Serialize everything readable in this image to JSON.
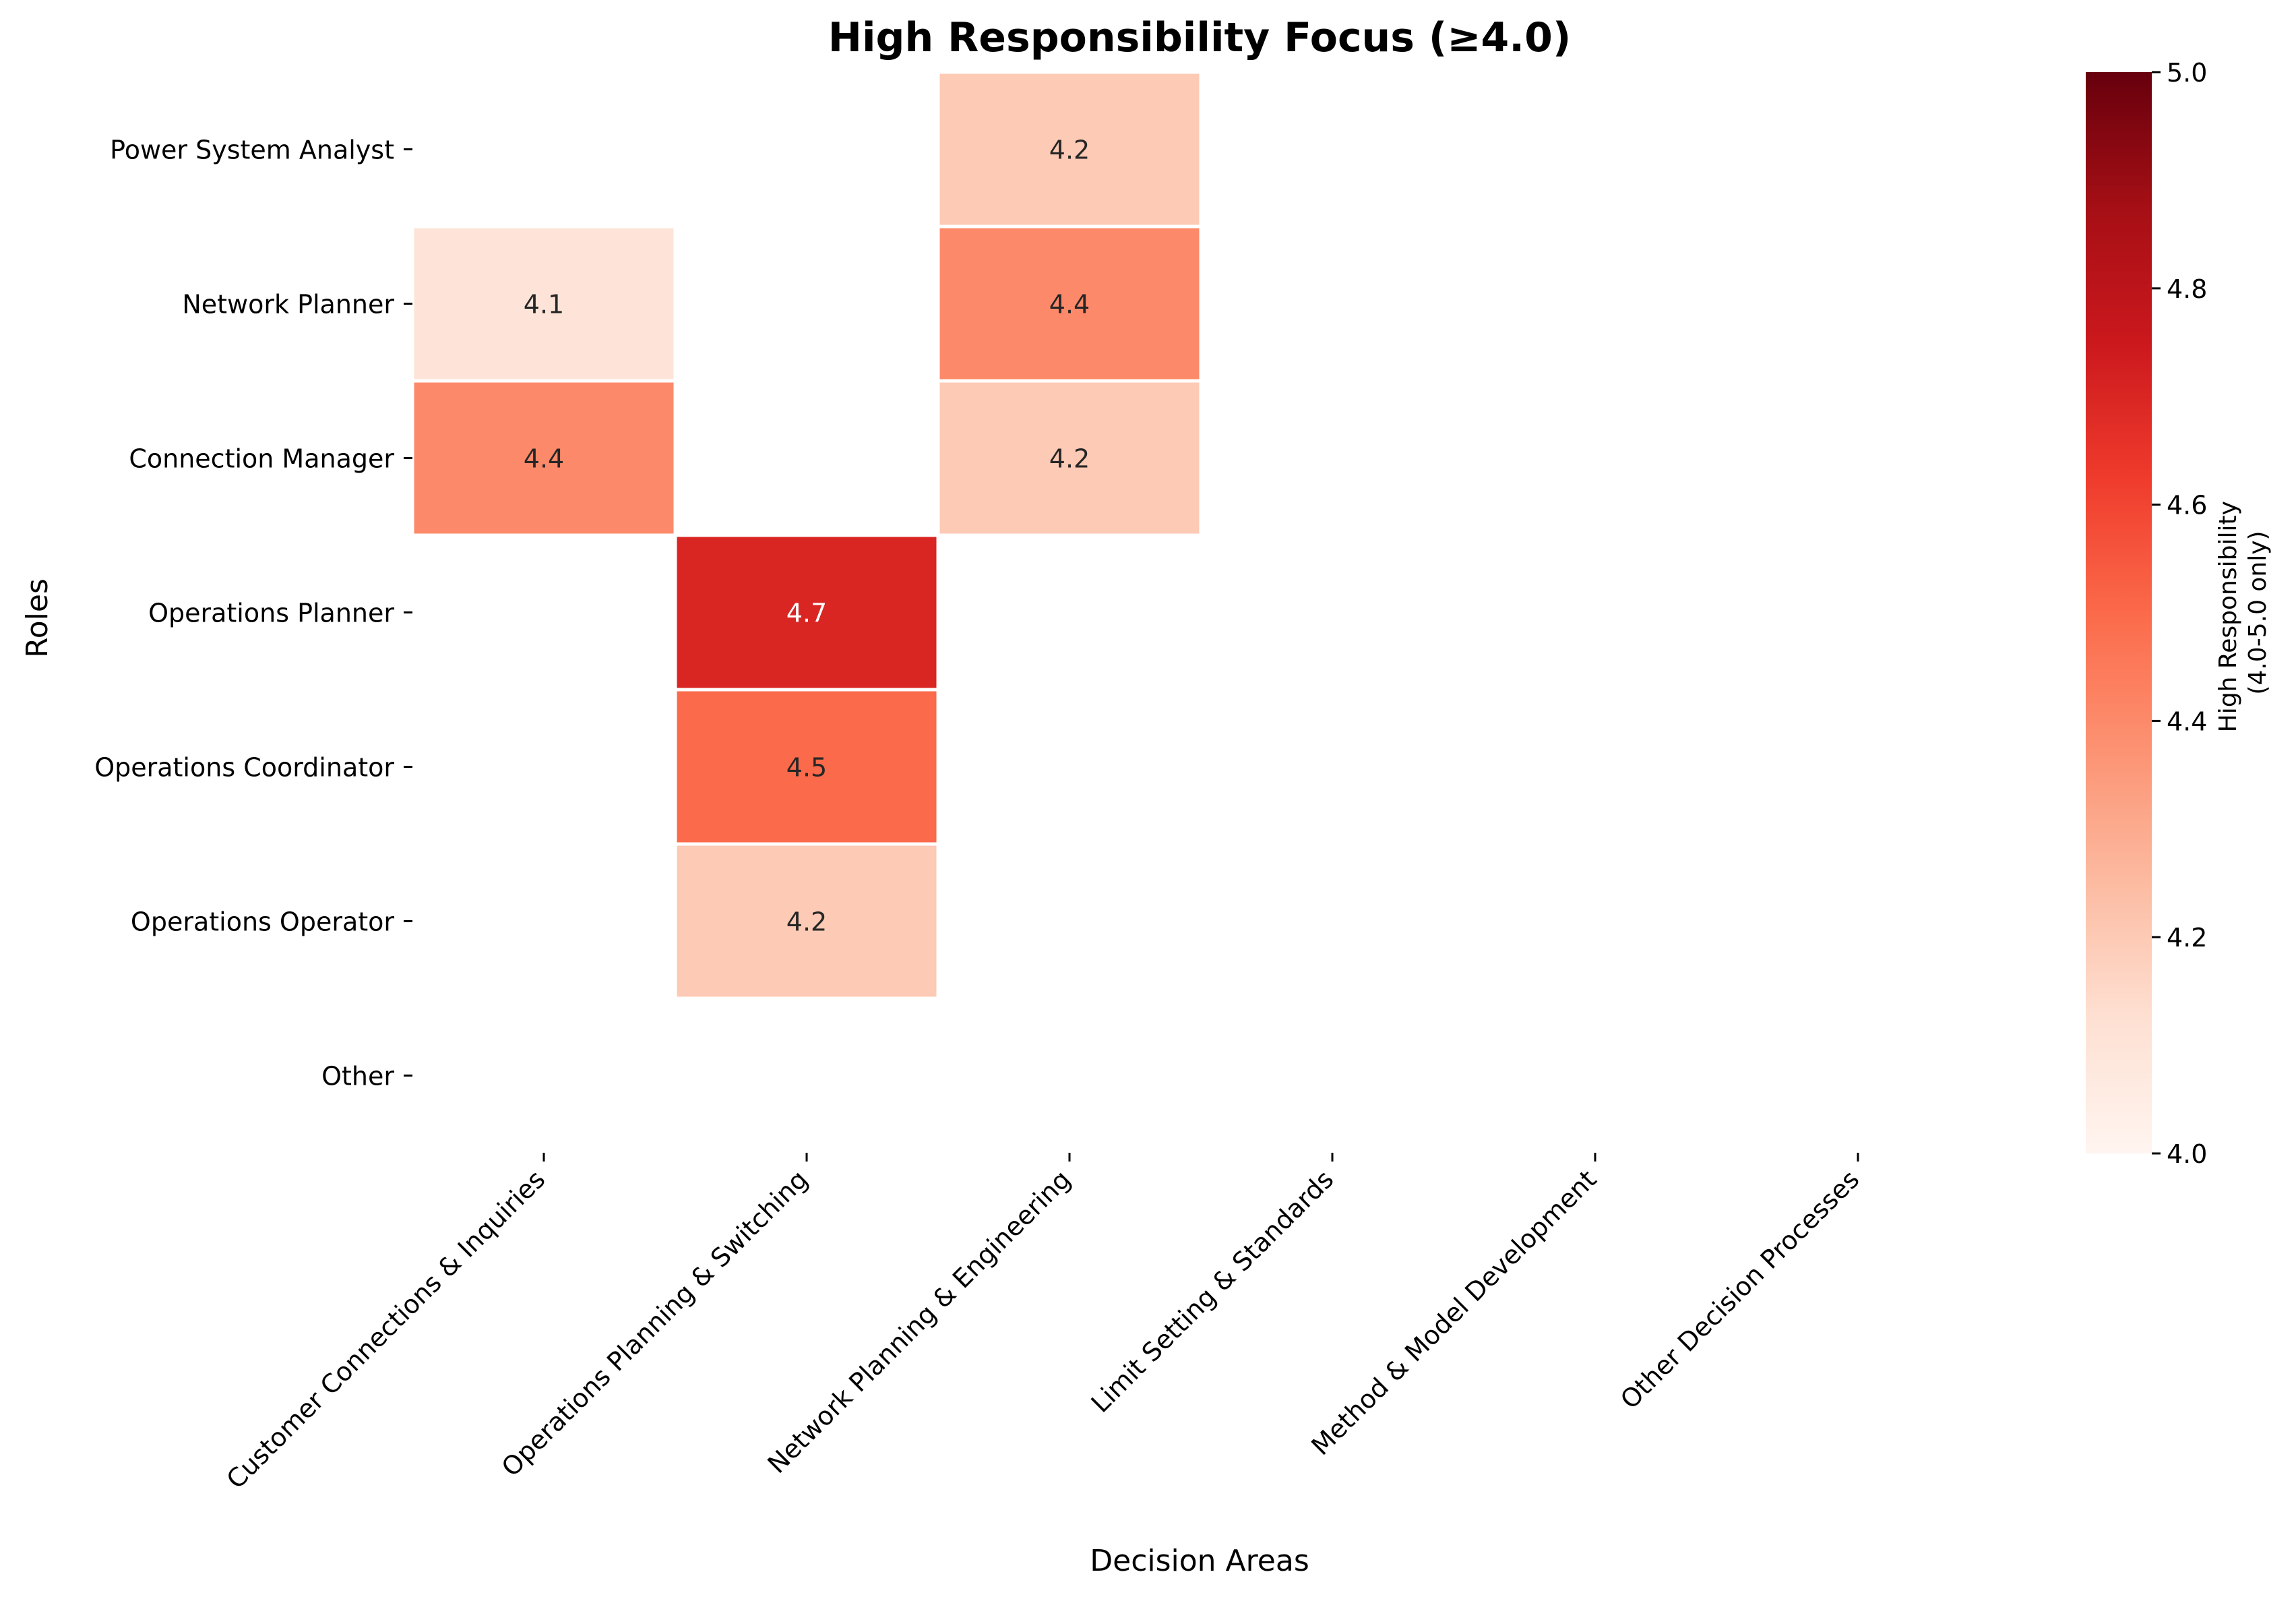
{
  "chart_data": {
    "type": "heatmap",
    "title": "High Responsibility Focus (≥4.0)",
    "xlabel": "Decision Areas",
    "ylabel": "Roles",
    "x_categories": [
      "Customer Connections & Inquiries",
      "Operations Planning & Switching",
      "Network Planning & Engineering",
      "Limit Setting & Standards",
      "Method & Model Development",
      "Other Decision Processes"
    ],
    "y_categories": [
      "Power System Analyst",
      "Network Planner",
      "Connection Manager",
      "Operations Planner",
      "Operations Coordinator",
      "Operations Operator",
      "Other"
    ],
    "values": [
      [
        null,
        null,
        4.2,
        null,
        null,
        null
      ],
      [
        4.1,
        null,
        4.4,
        null,
        null,
        null
      ],
      [
        4.4,
        null,
        4.2,
        null,
        null,
        null
      ],
      [
        null,
        4.7,
        null,
        null,
        null,
        null
      ],
      [
        null,
        4.5,
        null,
        null,
        null,
        null
      ],
      [
        null,
        4.2,
        null,
        null,
        null,
        null
      ],
      [
        null,
        null,
        null,
        null,
        null,
        null
      ]
    ],
    "colorbar": {
      "label_line1": "High Responsibility",
      "label_line2": "(4.0-5.0 only)",
      "min": 4.0,
      "max": 5.0,
      "ticks": [
        "4.0",
        "4.2",
        "4.4",
        "4.6",
        "4.8",
        "5.0"
      ],
      "colormap": "Reds"
    },
    "cell_border_color": "#ffffff"
  }
}
